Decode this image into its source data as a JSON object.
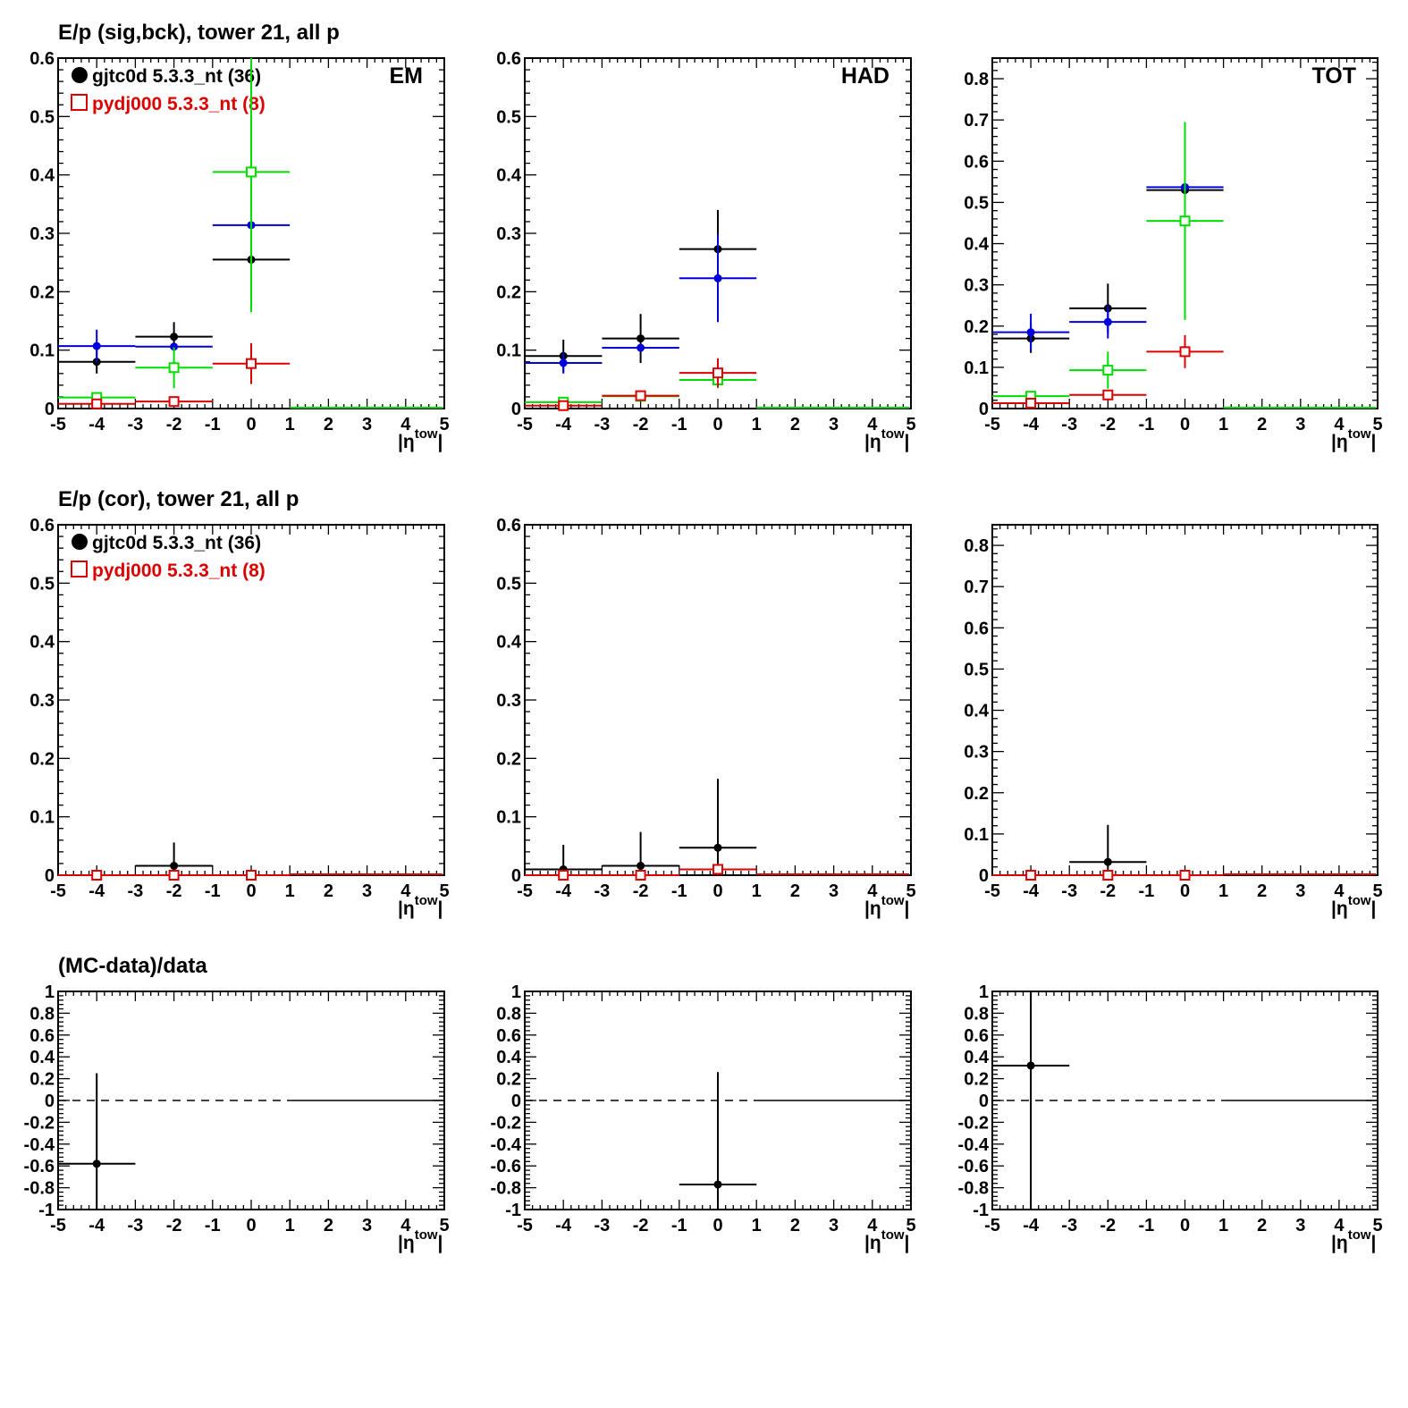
{
  "titles": {
    "row1": "E/p (sig,bck), tower 21, all p",
    "row2": "E/p (cor), tower 21, all p",
    "row3": "(MC-data)/data"
  },
  "legend": {
    "data_label": "gjtc0d 5.3.3_nt (36)",
    "mc_label": "pydj000 5.3.3_nt (8)"
  },
  "colors": {
    "data": "#000000",
    "mc": "#dd0000",
    "blue": "#0000dd",
    "green": "#00dd00"
  },
  "chart_data": [
    {
      "type": "scatter",
      "row": 1,
      "panel_label": "EM",
      "xlabel": "|η^tow|",
      "xlim": [
        -5,
        5
      ],
      "ylim": [
        0,
        0.6
      ],
      "xticks": [
        "-5",
        "-4",
        "-3",
        "-2",
        "-1",
        "0",
        "1",
        "2",
        "3",
        "4",
        "5"
      ],
      "yticks": [
        "0",
        "0.1",
        "0.2",
        "0.3",
        "0.4",
        "0.5",
        "0.6"
      ],
      "bins": [
        -4,
        -2,
        0
      ],
      "series": [
        {
          "color": "black",
          "marker": "dot",
          "values": [
            0.08,
            0.123,
            0.255
          ],
          "errors": [
            0.02,
            0.025,
            0.085
          ]
        },
        {
          "color": "blue",
          "marker": "dot",
          "values": [
            0.107,
            0.106,
            0.314
          ],
          "errors": [
            0.028,
            0.0,
            0.0
          ]
        },
        {
          "color": "green",
          "marker": "square",
          "values": [
            0.019,
            0.07,
            0.405
          ],
          "errors": [
            0.005,
            0.035,
            0.24
          ]
        },
        {
          "color": "red",
          "marker": "square",
          "values": [
            0.008,
            0.012,
            0.077
          ],
          "errors": [
            0.003,
            0.005,
            0.035
          ]
        }
      ]
    },
    {
      "type": "scatter",
      "row": 1,
      "panel_label": "HAD",
      "xlabel": "|η^tow|",
      "xlim": [
        -5,
        5
      ],
      "ylim": [
        0,
        0.6
      ],
      "xticks": [
        "-5",
        "-4",
        "-3",
        "-2",
        "-1",
        "0",
        "1",
        "2",
        "3",
        "4",
        "5"
      ],
      "yticks": [
        "0",
        "0.1",
        "0.2",
        "0.3",
        "0.4",
        "0.5",
        "0.6"
      ],
      "bins": [
        -4,
        -2,
        0
      ],
      "series": [
        {
          "color": "black",
          "marker": "dot",
          "values": [
            0.09,
            0.12,
            0.273
          ],
          "errors": [
            0.028,
            0.042,
            0.067
          ]
        },
        {
          "color": "blue",
          "marker": "dot",
          "values": [
            0.078,
            0.104,
            0.223
          ],
          "errors": [
            0.018,
            0.0,
            0.075
          ]
        },
        {
          "color": "green",
          "marker": "square",
          "values": [
            0.011,
            0.021,
            0.049
          ],
          "errors": [
            0.004,
            0.005,
            0.014
          ]
        },
        {
          "color": "red",
          "marker": "square",
          "values": [
            0.005,
            0.022,
            0.061
          ],
          "errors": [
            0.002,
            0.004,
            0.025
          ]
        }
      ]
    },
    {
      "type": "scatter",
      "row": 1,
      "panel_label": "TOT",
      "xlabel": "|η^tow|",
      "xlim": [
        -5,
        5
      ],
      "ylim": [
        0,
        0.85
      ],
      "xticks": [
        "-5",
        "-4",
        "-3",
        "-2",
        "-1",
        "0",
        "1",
        "2",
        "3",
        "4",
        "5"
      ],
      "yticks": [
        "0",
        "0.1",
        "0.2",
        "0.3",
        "0.4",
        "0.5",
        "0.6",
        "0.7",
        "0.8"
      ],
      "bins": [
        -4,
        -2,
        0
      ],
      "series": [
        {
          "color": "black",
          "marker": "dot",
          "values": [
            0.17,
            0.243,
            0.53
          ],
          "errors": [
            0.035,
            0.06,
            0.12
          ]
        },
        {
          "color": "blue",
          "marker": "dot",
          "values": [
            0.185,
            0.21,
            0.537
          ],
          "errors": [
            0.045,
            0.04,
            0.0
          ]
        },
        {
          "color": "green",
          "marker": "square",
          "values": [
            0.03,
            0.093,
            0.455
          ],
          "errors": [
            0.01,
            0.045,
            0.24
          ]
        },
        {
          "color": "red",
          "marker": "square",
          "values": [
            0.013,
            0.033,
            0.138
          ],
          "errors": [
            0.003,
            0.01,
            0.04
          ]
        }
      ]
    },
    {
      "type": "scatter",
      "row": 2,
      "panel_label": "",
      "xlabel": "|η^tow|",
      "xlim": [
        -5,
        5
      ],
      "ylim": [
        0,
        0.6
      ],
      "xticks": [
        "-5",
        "-4",
        "-3",
        "-2",
        "-1",
        "0",
        "1",
        "2",
        "3",
        "4",
        "5"
      ],
      "yticks": [
        "0",
        "0.1",
        "0.2",
        "0.3",
        "0.4",
        "0.5",
        "0.6"
      ],
      "bins": [
        -4,
        -2,
        0
      ],
      "series": [
        {
          "color": "black",
          "marker": "dot",
          "values": [
            0.0,
            0.016,
            0.0
          ],
          "errors": [
            0.0,
            0.04,
            0.0
          ]
        },
        {
          "color": "red",
          "marker": "square",
          "values": [
            0.0,
            0.0,
            0.0
          ],
          "errors": [
            0.0,
            0.0,
            0.0
          ]
        }
      ]
    },
    {
      "type": "scatter",
      "row": 2,
      "panel_label": "",
      "xlabel": "|η^tow|",
      "xlim": [
        -5,
        5
      ],
      "ylim": [
        0,
        0.6
      ],
      "xticks": [
        "-5",
        "-4",
        "-3",
        "-2",
        "-1",
        "0",
        "1",
        "2",
        "3",
        "4",
        "5"
      ],
      "yticks": [
        "0",
        "0.1",
        "0.2",
        "0.3",
        "0.4",
        "0.5",
        "0.6"
      ],
      "bins": [
        -4,
        -2,
        0
      ],
      "series": [
        {
          "color": "black",
          "marker": "dot",
          "values": [
            0.01,
            0.016,
            0.047
          ],
          "errors": [
            0.042,
            0.058,
            0.118
          ]
        },
        {
          "color": "red",
          "marker": "square",
          "values": [
            0.0,
            0.0,
            0.01
          ],
          "errors": [
            0.0,
            0.0,
            0.01
          ]
        }
      ]
    },
    {
      "type": "scatter",
      "row": 2,
      "panel_label": "",
      "xlabel": "|η^tow|",
      "xlim": [
        -5,
        5
      ],
      "ylim": [
        0,
        0.85
      ],
      "xticks": [
        "-5",
        "-4",
        "-3",
        "-2",
        "-1",
        "0",
        "1",
        "2",
        "3",
        "4",
        "5"
      ],
      "yticks": [
        "0",
        "0.1",
        "0.2",
        "0.3",
        "0.4",
        "0.5",
        "0.6",
        "0.7",
        "0.8"
      ],
      "bins": [
        -4,
        -2,
        0
      ],
      "series": [
        {
          "color": "black",
          "marker": "dot",
          "values": [
            0.0,
            0.032,
            0.0
          ],
          "errors": [
            0.0,
            0.09,
            0.0
          ]
        },
        {
          "color": "red",
          "marker": "square",
          "values": [
            0.0,
            0.0,
            0.0
          ],
          "errors": [
            0.0,
            0.0,
            0.0
          ]
        }
      ]
    },
    {
      "type": "scatter",
      "row": 3,
      "panel_label": "",
      "xlabel": "|η^tow|",
      "xlim": [
        -5,
        5
      ],
      "ylim": [
        -1,
        1
      ],
      "xticks": [
        "-5",
        "-4",
        "-3",
        "-2",
        "-1",
        "0",
        "1",
        "2",
        "3",
        "4",
        "5"
      ],
      "yticks": [
        "-1",
        "-0.8",
        "-0.6",
        "-0.4",
        "-0.2",
        "0",
        "0.2",
        "0.4",
        "0.6",
        "0.8",
        "1"
      ],
      "bins": [
        -4
      ],
      "series": [
        {
          "color": "black",
          "marker": "dot",
          "values": [
            -0.58
          ],
          "errors": [
            0.83
          ]
        }
      ]
    },
    {
      "type": "scatter",
      "row": 3,
      "panel_label": "",
      "xlabel": "|η^tow|",
      "xlim": [
        -5,
        5
      ],
      "ylim": [
        -1,
        1
      ],
      "xticks": [
        "-5",
        "-4",
        "-3",
        "-2",
        "-1",
        "0",
        "1",
        "2",
        "3",
        "4",
        "5"
      ],
      "yticks": [
        "-1",
        "-0.8",
        "-0.6",
        "-0.4",
        "-0.2",
        "0",
        "0.2",
        "0.4",
        "0.6",
        "0.8",
        "1"
      ],
      "bins": [
        0
      ],
      "series": [
        {
          "color": "black",
          "marker": "dot",
          "values": [
            -0.77
          ],
          "errors": [
            1.03
          ]
        }
      ]
    },
    {
      "type": "scatter",
      "row": 3,
      "panel_label": "",
      "xlabel": "|η^tow|",
      "xlim": [
        -5,
        5
      ],
      "ylim": [
        -1,
        1
      ],
      "xticks": [
        "-5",
        "-4",
        "-3",
        "-2",
        "-1",
        "0",
        "1",
        "2",
        "3",
        "4",
        "5"
      ],
      "yticks": [
        "-1",
        "-0.8",
        "-0.6",
        "-0.4",
        "-0.2",
        "0",
        "0.2",
        "0.4",
        "0.6",
        "0.8",
        "1"
      ],
      "bins": [
        -4
      ],
      "series": [
        {
          "color": "black",
          "marker": "dot",
          "values": [
            0.32
          ],
          "errors": [
            1.4
          ]
        }
      ]
    }
  ]
}
